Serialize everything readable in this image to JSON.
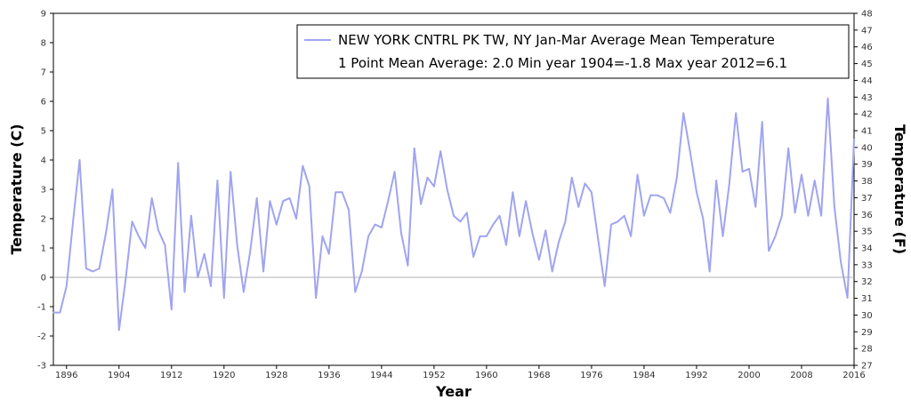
{
  "chart_data": {
    "type": "line",
    "title": "",
    "xlabel": "Year",
    "ylabel": "Temperature (C)",
    "y2label": "Temperature (F)",
    "xlim": [
      1894,
      2016
    ],
    "ylim": [
      -3,
      9
    ],
    "y2lim": [
      27,
      48
    ],
    "x_ticks": [
      1896,
      1904,
      1912,
      1920,
      1928,
      1936,
      1944,
      1952,
      1960,
      1968,
      1976,
      1984,
      1992,
      2000,
      2008,
      2016
    ],
    "y_ticks": [
      -3,
      -2,
      -1,
      0,
      1,
      2,
      3,
      4,
      5,
      6,
      7,
      8,
      9
    ],
    "y2_ticks": [
      27,
      28,
      29,
      30,
      31,
      32,
      33,
      34,
      35,
      36,
      37,
      38,
      39,
      40,
      41,
      42,
      43,
      44,
      45,
      46,
      47,
      48
    ],
    "zero_line": true,
    "grid": false,
    "legend_position": "top-right",
    "legend_lines": [
      "NEW YORK CNTRL PK TW, NY  Jan-Mar  Average Mean Temperature",
      "1 Point Mean  Average: 2.0  Min year 1904=-1.8  Max year 2012=6.1"
    ],
    "series": [
      {
        "color": "#a0a4f0",
        "x": [
          1894,
          1895,
          1896,
          1897,
          1898,
          1899,
          1900,
          1901,
          1902,
          1903,
          1904,
          1905,
          1906,
          1907,
          1908,
          1909,
          1910,
          1911,
          1912,
          1913,
          1914,
          1915,
          1916,
          1917,
          1918,
          1919,
          1920,
          1921,
          1922,
          1923,
          1924,
          1925,
          1926,
          1927,
          1928,
          1929,
          1930,
          1931,
          1932,
          1933,
          1934,
          1935,
          1936,
          1937,
          1938,
          1939,
          1940,
          1941,
          1942,
          1943,
          1944,
          1945,
          1946,
          1947,
          1948,
          1949,
          1950,
          1951,
          1952,
          1953,
          1954,
          1955,
          1956,
          1957,
          1958,
          1959,
          1960,
          1961,
          1962,
          1963,
          1964,
          1965,
          1966,
          1967,
          1968,
          1969,
          1970,
          1971,
          1972,
          1973,
          1974,
          1975,
          1976,
          1977,
          1978,
          1979,
          1980,
          1981,
          1982,
          1983,
          1984,
          1985,
          1986,
          1987,
          1988,
          1989,
          1990,
          1991,
          1992,
          1993,
          1994,
          1995,
          1996,
          1997,
          1998,
          1999,
          2000,
          2001,
          2002,
          2003,
          2004,
          2005,
          2006,
          2007,
          2008,
          2009,
          2010,
          2011,
          2012,
          2013,
          2014,
          2015,
          2016
        ],
        "y": [
          -1.2,
          -1.2,
          -0.3,
          1.9,
          4.0,
          0.3,
          0.2,
          0.3,
          1.5,
          3.0,
          -1.8,
          -0.1,
          1.9,
          1.4,
          1.0,
          2.7,
          1.6,
          1.1,
          -1.1,
          3.9,
          -0.5,
          2.1,
          0.0,
          0.8,
          -0.3,
          3.3,
          -0.7,
          3.6,
          1.1,
          -0.5,
          0.9,
          2.7,
          0.2,
          2.6,
          1.8,
          2.6,
          2.7,
          2.0,
          3.8,
          3.1,
          -0.7,
          1.4,
          0.8,
          2.9,
          2.9,
          2.3,
          -0.5,
          0.2,
          1.4,
          1.8,
          1.7,
          2.6,
          3.6,
          1.5,
          0.4,
          4.4,
          2.5,
          3.4,
          3.1,
          4.3,
          3.0,
          2.1,
          1.9,
          2.2,
          0.7,
          1.4,
          1.4,
          1.8,
          2.1,
          1.1,
          2.9,
          1.4,
          2.6,
          1.5,
          0.6,
          1.6,
          0.2,
          1.2,
          1.9,
          3.4,
          2.4,
          3.2,
          2.9,
          1.3,
          -0.3,
          1.8,
          1.9,
          2.1,
          1.4,
          3.5,
          2.1,
          2.8,
          2.8,
          2.7,
          2.2,
          3.4,
          5.6,
          4.3,
          2.9,
          2.0,
          0.2,
          3.3,
          1.4,
          3.2,
          5.6,
          3.6,
          3.7,
          2.4,
          5.3,
          0.9,
          1.4,
          2.1,
          4.4,
          2.2,
          3.5,
          2.1,
          3.3,
          2.1,
          6.1,
          2.4,
          0.5,
          -0.7,
          4.7
        ]
      }
    ]
  }
}
